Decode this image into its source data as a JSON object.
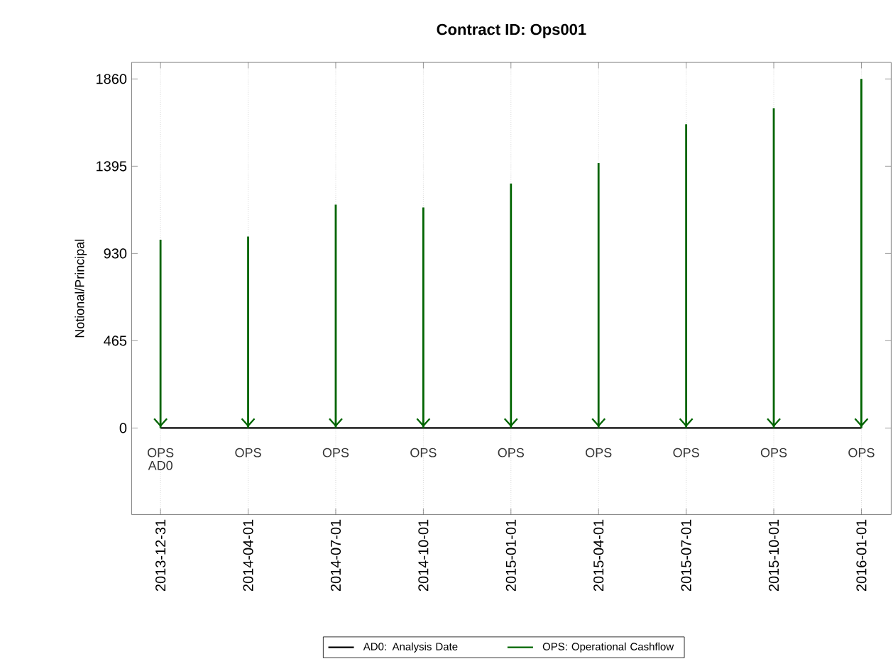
{
  "chart_data": {
    "type": "bar",
    "title": "Contract ID: Ops001",
    "ylabel": "Notional/Principal",
    "categories": [
      "2013-12-31",
      "2014-04-01",
      "2014-07-01",
      "2014-10-01",
      "2015-01-01",
      "2015-04-01",
      "2015-07-01",
      "2015-10-01",
      "2016-01-01"
    ],
    "series": [
      {
        "name": "AD0: Analysis Date",
        "type": "line",
        "color": "#000000",
        "values": [
          0,
          0,
          0,
          0,
          0,
          0,
          0,
          0,
          0
        ]
      },
      {
        "name": "OPS: Operational Cashflow",
        "color": "#006400",
        "values": [
          1003,
          1020,
          1190,
          1175,
          1303,
          1411,
          1618,
          1704,
          1860
        ]
      }
    ],
    "ylim": [
      -461,
      1948
    ],
    "yticks": [
      0,
      465,
      930,
      1395,
      1860
    ],
    "grid": "x",
    "legend": "bottom",
    "annotations": [
      "OPS",
      "OPS",
      "OPS",
      "OPS",
      "OPS",
      "OPS",
      "OPS",
      "OPS",
      "OPS",
      "AD0"
    ]
  }
}
